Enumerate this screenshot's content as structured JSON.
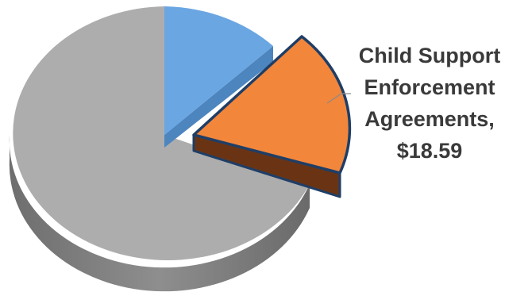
{
  "chart_data": {
    "type": "pie",
    "style": "3d-exploded",
    "slices": [
      {
        "color": "#6aa6e2",
        "side_color": "#4d85bf"
      },
      {
        "label_lines": [
          "Child Support",
          "Enforcement",
          "Agreements,",
          "$18.59"
        ],
        "value": 18.59,
        "exploded": true,
        "color": "#f2863b",
        "side_color": "#6a3414",
        "border_color": "#1f3e66"
      },
      {
        "color": "#adadad",
        "side_color": "#7c7c7c"
      }
    ]
  }
}
